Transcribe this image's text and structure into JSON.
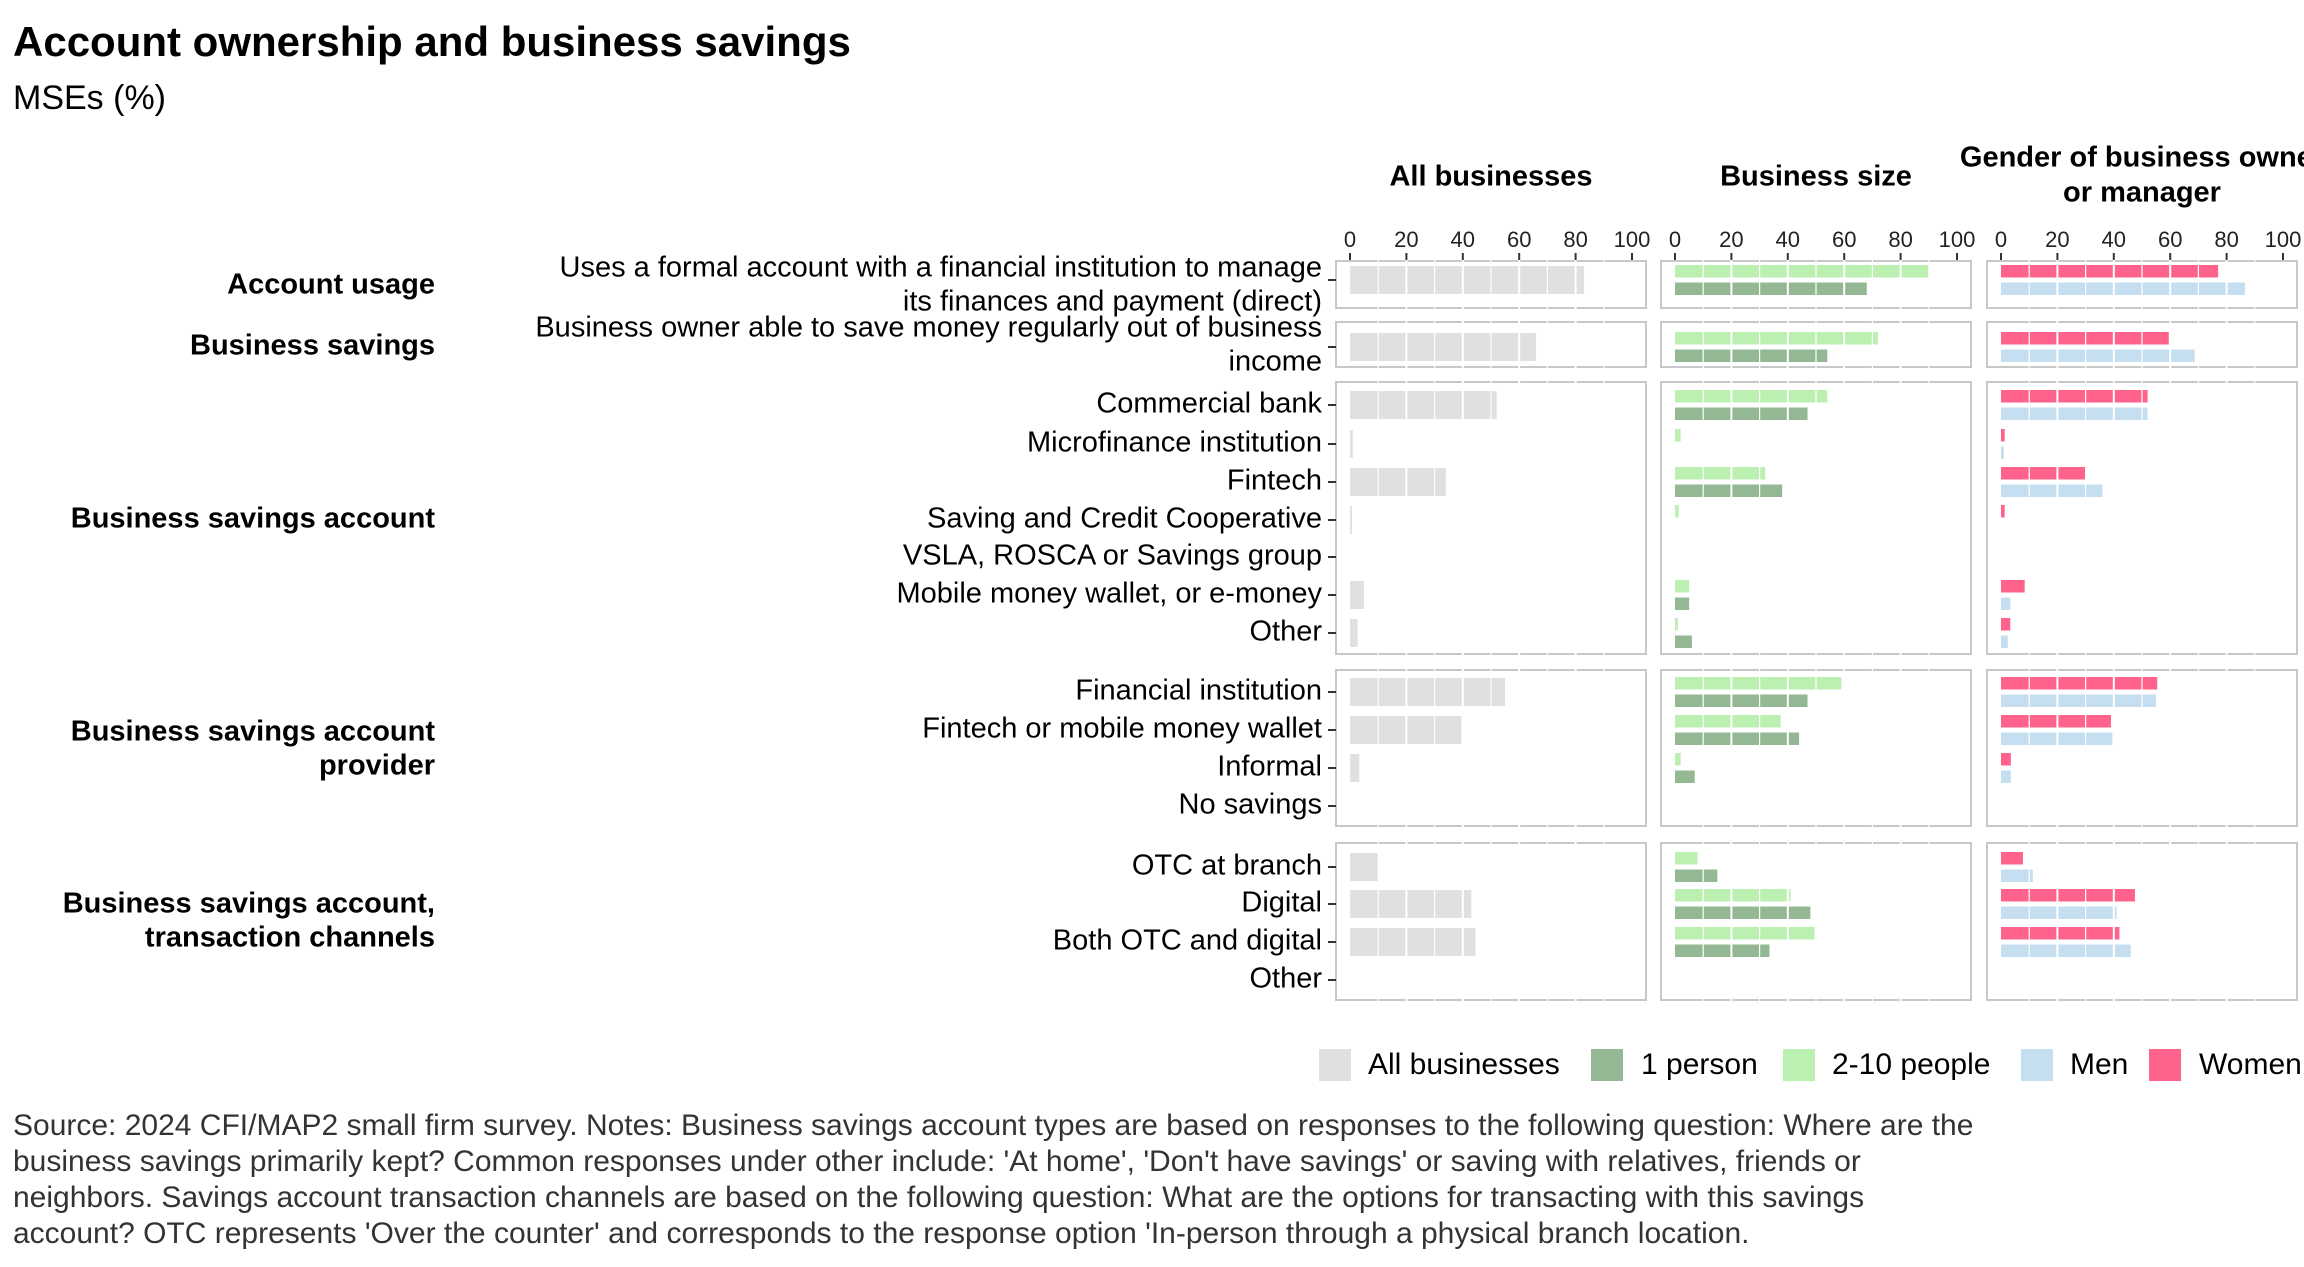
{
  "title": "Account ownership and business savings",
  "subtitle": "MSEs (%)",
  "chart_data": {
    "type": "bar",
    "orientation": "horizontal",
    "xlim": [
      0,
      100
    ],
    "x_ticks": [
      "0",
      "20",
      "40",
      "60",
      "80",
      "100"
    ],
    "grid": true,
    "legend_position": "bottom-right",
    "groups": [
      {
        "label": [
          "Account usage"
        ]
      },
      {
        "label": [
          "Business savings"
        ]
      },
      {
        "label": [
          "Business savings account"
        ]
      },
      {
        "label": [
          "Business savings account",
          "provider"
        ]
      },
      {
        "label": [
          "Business savings account,",
          "transaction channels"
        ]
      }
    ],
    "categories": [
      {
        "group": 0,
        "label": [
          "Uses a formal account with a financial institution to manage",
          "its finances and payment (direct)"
        ]
      },
      {
        "group": 1,
        "label": [
          "Business owner able to save money regularly out of business",
          "income"
        ]
      },
      {
        "group": 2,
        "label": [
          "Commercial bank"
        ]
      },
      {
        "group": 2,
        "label": [
          "Microfinance institution"
        ]
      },
      {
        "group": 2,
        "label": [
          "Fintech"
        ]
      },
      {
        "group": 2,
        "label": [
          "Saving and Credit Cooperative"
        ]
      },
      {
        "group": 2,
        "label": [
          "VSLA, ROSCA or Savings group"
        ]
      },
      {
        "group": 2,
        "label": [
          "Mobile money wallet, or e-money"
        ]
      },
      {
        "group": 2,
        "label": [
          "Other"
        ]
      },
      {
        "group": 3,
        "label": [
          "Financial institution"
        ]
      },
      {
        "group": 3,
        "label": [
          "Fintech or mobile money wallet"
        ]
      },
      {
        "group": 3,
        "label": [
          "Informal"
        ]
      },
      {
        "group": 3,
        "label": [
          "No savings"
        ]
      },
      {
        "group": 4,
        "label": [
          "OTC at branch"
        ]
      },
      {
        "group": 4,
        "label": [
          "Digital"
        ]
      },
      {
        "group": 4,
        "label": [
          "Both OTC and digital"
        ]
      },
      {
        "group": 4,
        "label": [
          "Other"
        ]
      }
    ],
    "facets": [
      {
        "title": [
          "All businesses"
        ],
        "series": [
          {
            "name": "All businesses",
            "color": "#e0e0e0",
            "values": [
              83,
              66,
              52,
              1,
              34,
              0.7,
              0,
              5,
              2.7,
              55,
              39.5,
              3.3,
              0,
              10,
              43,
              44.5,
              0
            ]
          }
        ]
      },
      {
        "title": [
          "Business size"
        ],
        "series": [
          {
            "name": "2-10 people",
            "color": "#bbf0b1",
            "values": [
              90,
              72,
              54,
              2,
              32,
              1.3,
              0,
              5,
              1,
              59,
              37.5,
              2,
              0,
              8,
              41,
              49.5,
              0
            ]
          },
          {
            "name": "1 person",
            "color": "#93b893",
            "values": [
              68,
              54,
              47,
              0,
              38,
              0,
              0,
              5,
              6,
              47,
              44,
              7,
              0,
              15,
              48,
              33.5,
              0
            ]
          }
        ]
      },
      {
        "title": [
          "Gender of business owner",
          "or manager"
        ],
        "series": [
          {
            "name": "Women",
            "color": "#ff638c",
            "values": [
              77,
              59.5,
              52,
              1.3,
              30,
              1.3,
              0,
              8.4,
              3.3,
              55.4,
              39,
              3.5,
              0,
              7.8,
              47.5,
              42,
              0
            ]
          },
          {
            "name": "Men",
            "color": "#c5dff0",
            "values": [
              86.5,
              68.7,
              52,
              1,
              36,
              0,
              0,
              3.3,
              2.4,
              55,
              39.5,
              3.5,
              0,
              11.3,
              41,
              46,
              0
            ]
          }
        ]
      }
    ],
    "legend": [
      {
        "label": "All businesses",
        "color": "#e0e0e0"
      },
      {
        "label": "1 person",
        "color": "#93b893"
      },
      {
        "label": "2-10 people",
        "color": "#bbf0b1"
      },
      {
        "label": "Men",
        "color": "#c5dff0"
      },
      {
        "label": "Women",
        "color": "#ff638c"
      }
    ]
  },
  "note": [
    "Source: 2024 CFI/MAP2 small firm survey. Notes: Business savings account types are based on responses to the following question: Where are the",
    "business savings primarily kept? Common responses under other include: 'At home', 'Don't have savings' or saving with relatives, friends or",
    "neighbors. Savings account transaction channels are based on the following question: What are the options for transacting with this savings",
    "account? OTC represents 'Over the counter' and corresponds to the response option 'In-person through a physical branch location."
  ]
}
